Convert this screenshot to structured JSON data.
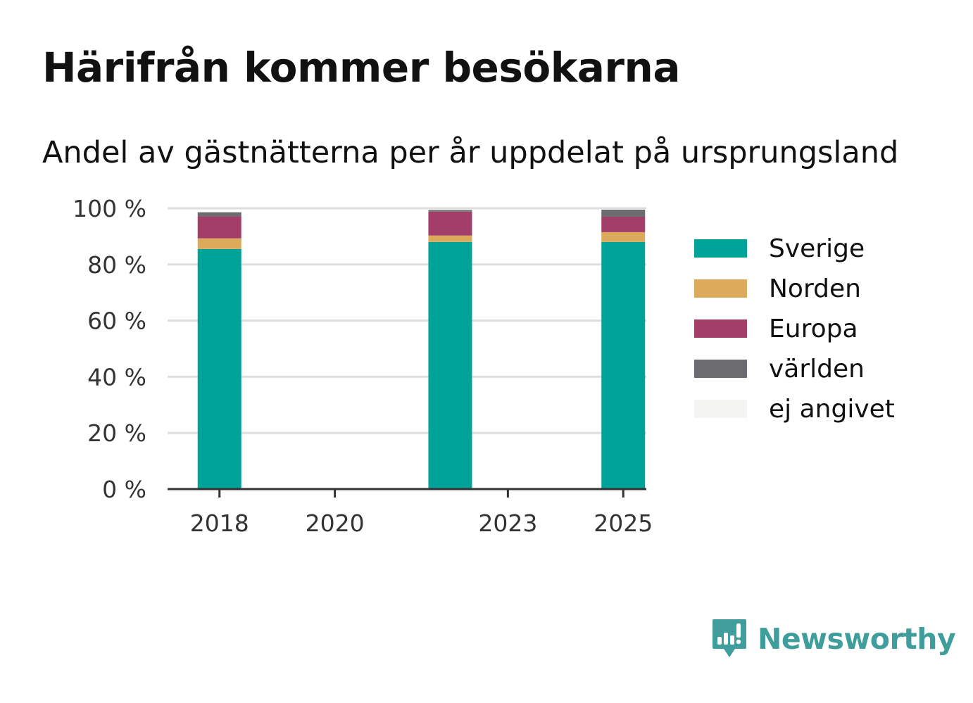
{
  "title": "Härifrån kommer besökarna",
  "subtitle": "Andel av gästnätterna per år uppdelat på ursprungsland",
  "brand": {
    "name": "Newsworthy"
  },
  "chart_data": {
    "type": "bar",
    "stacked": true,
    "x_ticks": [
      2018,
      2020,
      2023,
      2025
    ],
    "x_range": [
      2017.1,
      2025.4
    ],
    "categories": [
      2018,
      2022,
      2025
    ],
    "series": [
      {
        "name": "Sverige",
        "color": "#00a398",
        "values": [
          85.5,
          88.0,
          88.0
        ]
      },
      {
        "name": "Norden",
        "color": "#dbab5b",
        "values": [
          3.8,
          2.3,
          3.5
        ]
      },
      {
        "name": "Europa",
        "color": "#a33e68",
        "values": [
          7.8,
          8.5,
          5.5
        ]
      },
      {
        "name": "världen",
        "color": "#6b6b70",
        "values": [
          1.5,
          0.6,
          2.5
        ]
      },
      {
        "name": "ej angivet",
        "color": "#f4f4f2",
        "values": [
          0.1,
          0.1,
          0.1
        ]
      }
    ],
    "y_ticks": [
      "0 %",
      "20 %",
      "40 %",
      "60 %",
      "80 %",
      "100 %"
    ],
    "ylim": [
      0,
      100
    ],
    "grid": true,
    "legend_position": "right"
  }
}
